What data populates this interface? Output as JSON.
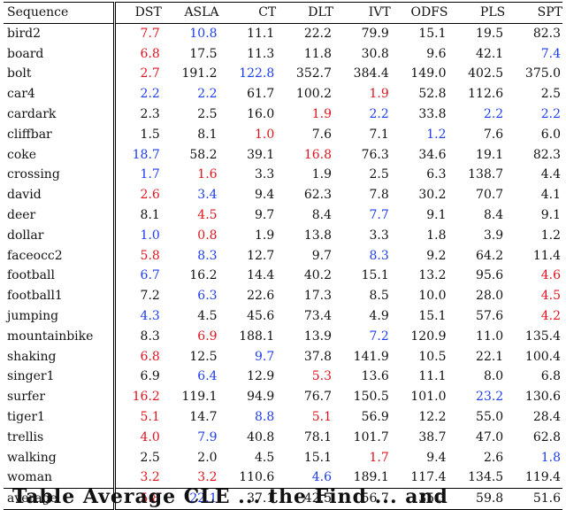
{
  "table": {
    "header": [
      "Sequence",
      "DST",
      "ASLA",
      "CT",
      "DLT",
      "IVT",
      "ODFS",
      "PLS",
      "SPT"
    ],
    "rows": [
      {
        "name": "bird2",
        "cells": [
          [
            "7.7",
            "r"
          ],
          [
            "10.8",
            "b"
          ],
          [
            "11.1",
            "k"
          ],
          [
            "22.2",
            "k"
          ],
          [
            "79.9",
            "k"
          ],
          [
            "15.1",
            "k"
          ],
          [
            "19.5",
            "k"
          ],
          [
            "82.3",
            "k"
          ]
        ]
      },
      {
        "name": "board",
        "cells": [
          [
            "6.8",
            "r"
          ],
          [
            "17.5",
            "k"
          ],
          [
            "11.3",
            "k"
          ],
          [
            "11.8",
            "k"
          ],
          [
            "30.8",
            "k"
          ],
          [
            "9.6",
            "k"
          ],
          [
            "42.1",
            "k"
          ],
          [
            "7.4",
            "b"
          ]
        ]
      },
      {
        "name": "bolt",
        "cells": [
          [
            "2.7",
            "r"
          ],
          [
            "191.2",
            "k"
          ],
          [
            "122.8",
            "b"
          ],
          [
            "352.7",
            "k"
          ],
          [
            "384.4",
            "k"
          ],
          [
            "149.0",
            "k"
          ],
          [
            "402.5",
            "k"
          ],
          [
            "375.0",
            "k"
          ]
        ]
      },
      {
        "name": "car4",
        "cells": [
          [
            "2.2",
            "b"
          ],
          [
            "2.2",
            "b"
          ],
          [
            "61.7",
            "k"
          ],
          [
            "100.2",
            "k"
          ],
          [
            "1.9",
            "r"
          ],
          [
            "52.8",
            "k"
          ],
          [
            "112.6",
            "k"
          ],
          [
            "2.5",
            "k"
          ]
        ]
      },
      {
        "name": "cardark",
        "cells": [
          [
            "2.3",
            "k"
          ],
          [
            "2.5",
            "k"
          ],
          [
            "16.0",
            "k"
          ],
          [
            "1.9",
            "r"
          ],
          [
            "2.2",
            "b"
          ],
          [
            "33.8",
            "k"
          ],
          [
            "2.2",
            "b"
          ],
          [
            "2.2",
            "b"
          ]
        ]
      },
      {
        "name": "cliffbar",
        "cells": [
          [
            "1.5",
            "k"
          ],
          [
            "8.1",
            "k"
          ],
          [
            "1.0",
            "r"
          ],
          [
            "7.6",
            "k"
          ],
          [
            "7.1",
            "k"
          ],
          [
            "1.2",
            "b"
          ],
          [
            "7.6",
            "k"
          ],
          [
            "6.0",
            "k"
          ]
        ]
      },
      {
        "name": "coke",
        "cells": [
          [
            "18.7",
            "b"
          ],
          [
            "58.2",
            "k"
          ],
          [
            "39.1",
            "k"
          ],
          [
            "16.8",
            "r"
          ],
          [
            "76.3",
            "k"
          ],
          [
            "34.6",
            "k"
          ],
          [
            "19.1",
            "k"
          ],
          [
            "82.3",
            "k"
          ]
        ]
      },
      {
        "name": "crossing",
        "cells": [
          [
            "1.7",
            "b"
          ],
          [
            "1.6",
            "r"
          ],
          [
            "3.3",
            "k"
          ],
          [
            "1.9",
            "k"
          ],
          [
            "2.5",
            "k"
          ],
          [
            "6.3",
            "k"
          ],
          [
            "138.7",
            "k"
          ],
          [
            "4.4",
            "k"
          ]
        ]
      },
      {
        "name": "david",
        "cells": [
          [
            "2.6",
            "r"
          ],
          [
            "3.4",
            "b"
          ],
          [
            "9.4",
            "k"
          ],
          [
            "62.3",
            "k"
          ],
          [
            "7.8",
            "k"
          ],
          [
            "30.2",
            "k"
          ],
          [
            "70.7",
            "k"
          ],
          [
            "4.1",
            "k"
          ]
        ]
      },
      {
        "name": "deer",
        "cells": [
          [
            "8.1",
            "k"
          ],
          [
            "4.5",
            "r"
          ],
          [
            "9.7",
            "k"
          ],
          [
            "8.4",
            "k"
          ],
          [
            "7.7",
            "b"
          ],
          [
            "9.1",
            "k"
          ],
          [
            "8.4",
            "k"
          ],
          [
            "9.1",
            "k"
          ]
        ]
      },
      {
        "name": "dollar",
        "cells": [
          [
            "1.0",
            "b"
          ],
          [
            "0.8",
            "r"
          ],
          [
            "1.9",
            "k"
          ],
          [
            "13.8",
            "k"
          ],
          [
            "3.3",
            "k"
          ],
          [
            "1.8",
            "k"
          ],
          [
            "3.9",
            "k"
          ],
          [
            "1.2",
            "k"
          ]
        ]
      },
      {
        "name": "faceocc2",
        "cells": [
          [
            "5.8",
            "r"
          ],
          [
            "8.3",
            "b"
          ],
          [
            "12.7",
            "k"
          ],
          [
            "9.7",
            "k"
          ],
          [
            "8.3",
            "b"
          ],
          [
            "9.2",
            "k"
          ],
          [
            "64.2",
            "k"
          ],
          [
            "11.4",
            "k"
          ]
        ]
      },
      {
        "name": "football",
        "cells": [
          [
            "6.7",
            "b"
          ],
          [
            "16.2",
            "k"
          ],
          [
            "14.4",
            "k"
          ],
          [
            "40.2",
            "k"
          ],
          [
            "15.1",
            "k"
          ],
          [
            "13.2",
            "k"
          ],
          [
            "95.6",
            "k"
          ],
          [
            "4.6",
            "r"
          ]
        ]
      },
      {
        "name": "football1",
        "cells": [
          [
            "7.2",
            "k"
          ],
          [
            "6.3",
            "b"
          ],
          [
            "22.6",
            "k"
          ],
          [
            "17.3",
            "k"
          ],
          [
            "8.5",
            "k"
          ],
          [
            "10.0",
            "k"
          ],
          [
            "28.0",
            "k"
          ],
          [
            "4.5",
            "r"
          ]
        ]
      },
      {
        "name": "jumping",
        "cells": [
          [
            "4.3",
            "b"
          ],
          [
            "4.5",
            "k"
          ],
          [
            "45.6",
            "k"
          ],
          [
            "73.4",
            "k"
          ],
          [
            "4.9",
            "k"
          ],
          [
            "15.1",
            "k"
          ],
          [
            "57.6",
            "k"
          ],
          [
            "4.2",
            "r"
          ]
        ]
      },
      {
        "name": "mountainbike",
        "cells": [
          [
            "8.3",
            "k"
          ],
          [
            "6.9",
            "r"
          ],
          [
            "188.1",
            "k"
          ],
          [
            "13.9",
            "k"
          ],
          [
            "7.2",
            "b"
          ],
          [
            "120.9",
            "k"
          ],
          [
            "11.0",
            "k"
          ],
          [
            "135.4",
            "k"
          ]
        ]
      },
      {
        "name": "shaking",
        "cells": [
          [
            "6.8",
            "r"
          ],
          [
            "12.5",
            "k"
          ],
          [
            "9.7",
            "b"
          ],
          [
            "37.8",
            "k"
          ],
          [
            "141.9",
            "k"
          ],
          [
            "10.5",
            "k"
          ],
          [
            "22.1",
            "k"
          ],
          [
            "100.4",
            "k"
          ]
        ]
      },
      {
        "name": "singer1",
        "cells": [
          [
            "6.9",
            "k"
          ],
          [
            "6.4",
            "b"
          ],
          [
            "12.9",
            "k"
          ],
          [
            "5.3",
            "r"
          ],
          [
            "13.6",
            "k"
          ],
          [
            "11.1",
            "k"
          ],
          [
            "8.0",
            "k"
          ],
          [
            "6.8",
            "k"
          ]
        ]
      },
      {
        "name": "surfer",
        "cells": [
          [
            "16.2",
            "r"
          ],
          [
            "119.1",
            "k"
          ],
          [
            "94.9",
            "k"
          ],
          [
            "76.7",
            "k"
          ],
          [
            "150.5",
            "k"
          ],
          [
            "101.0",
            "k"
          ],
          [
            "23.2",
            "b"
          ],
          [
            "130.6",
            "k"
          ]
        ]
      },
      {
        "name": "tiger1",
        "cells": [
          [
            "5.1",
            "r"
          ],
          [
            "14.7",
            "k"
          ],
          [
            "8.8",
            "b"
          ],
          [
            "5.1",
            "r"
          ],
          [
            "56.9",
            "k"
          ],
          [
            "12.2",
            "k"
          ],
          [
            "55.0",
            "k"
          ],
          [
            "28.4",
            "k"
          ]
        ]
      },
      {
        "name": "trellis",
        "cells": [
          [
            "4.0",
            "r"
          ],
          [
            "7.9",
            "b"
          ],
          [
            "40.8",
            "k"
          ],
          [
            "78.1",
            "k"
          ],
          [
            "101.7",
            "k"
          ],
          [
            "38.7",
            "k"
          ],
          [
            "47.0",
            "k"
          ],
          [
            "62.8",
            "k"
          ]
        ]
      },
      {
        "name": "walking",
        "cells": [
          [
            "2.5",
            "k"
          ],
          [
            "2.0",
            "k"
          ],
          [
            "4.5",
            "k"
          ],
          [
            "15.1",
            "k"
          ],
          [
            "1.7",
            "r"
          ],
          [
            "9.4",
            "k"
          ],
          [
            "2.6",
            "k"
          ],
          [
            "1.8",
            "b"
          ]
        ]
      },
      {
        "name": "woman",
        "cells": [
          [
            "3.2",
            "r"
          ],
          [
            "3.2",
            "r"
          ],
          [
            "110.6",
            "k"
          ],
          [
            "4.6",
            "b"
          ],
          [
            "189.1",
            "k"
          ],
          [
            "117.4",
            "k"
          ],
          [
            "134.5",
            "k"
          ],
          [
            "119.4",
            "k"
          ]
        ]
      }
    ],
    "average": {
      "name": "average",
      "cells": [
        [
          "5.8",
          "r"
        ],
        [
          "22.1",
          "b"
        ],
        [
          "37.1",
          "k"
        ],
        [
          "42.5",
          "k"
        ],
        [
          "56.7",
          "k"
        ],
        [
          "35.3",
          "k"
        ],
        [
          "59.8",
          "k"
        ],
        [
          "51.6",
          "k"
        ]
      ]
    }
  },
  "caption": "Table  Average CLE  ...  the  Find  ...  and",
  "colors": {
    "best": "#e0141e",
    "second": "#1e3cf0",
    "default": "#111111"
  }
}
